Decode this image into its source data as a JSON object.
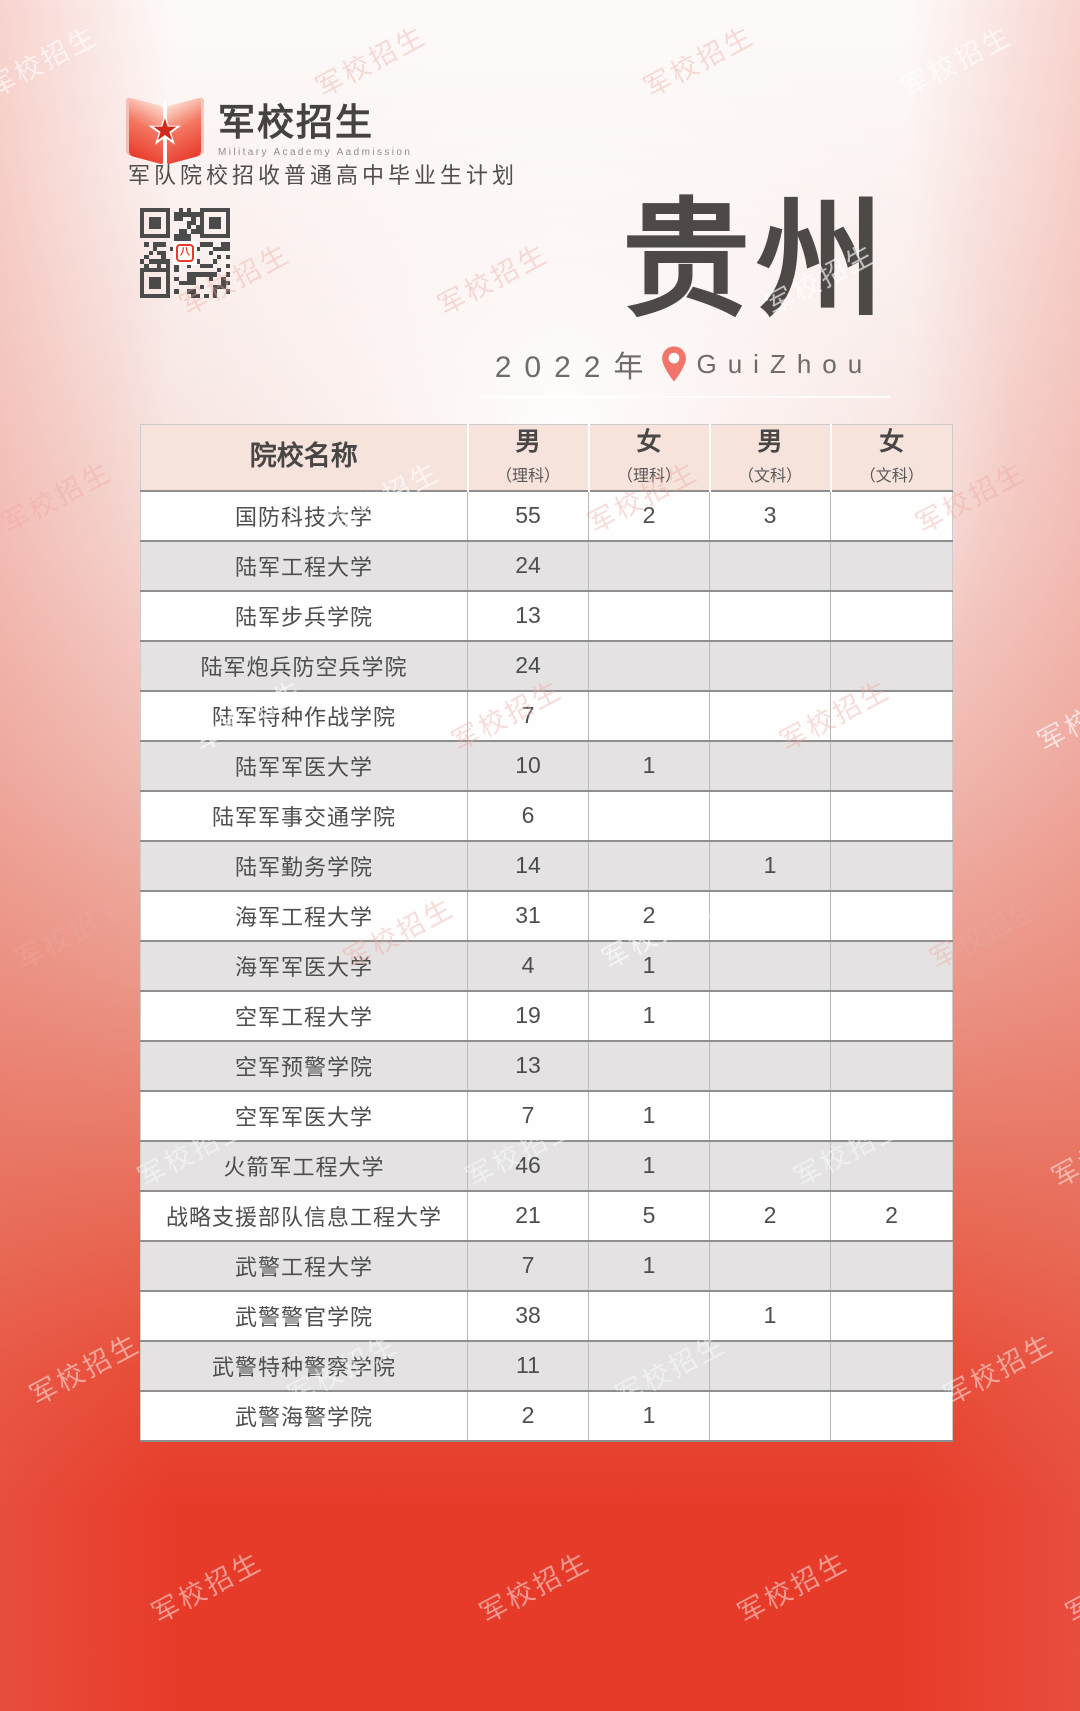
{
  "brand": {
    "logo_title": "军校招生",
    "logo_subtitle": "Military Academy Aadmission",
    "tagline": "军队院校招收普通高中毕业生计划"
  },
  "hero": {
    "title": "贵州",
    "year": "2022年",
    "pinyin": "GuiZhou"
  },
  "watermark": {
    "text": "军校招生"
  },
  "colors": {
    "poster_red": "#e73b2a",
    "table_header_bg": "#f6e3dc",
    "row_alt_bg": "#e4e2e2",
    "pin_red": "#f2756b",
    "text_dark": "#4c4a49"
  },
  "table": {
    "columns": [
      {
        "title": "院校名称",
        "subtitle": ""
      },
      {
        "title": "男",
        "subtitle": "（理科）"
      },
      {
        "title": "女",
        "subtitle": "（理科）"
      },
      {
        "title": "男",
        "subtitle": "（文科）"
      },
      {
        "title": "女",
        "subtitle": "（文科）"
      }
    ],
    "rows": [
      {
        "name": "国防科技大学",
        "values": [
          "55",
          "2",
          "3",
          ""
        ]
      },
      {
        "name": "陆军工程大学",
        "values": [
          "24",
          "",
          "",
          ""
        ]
      },
      {
        "name": "陆军步兵学院",
        "values": [
          "13",
          "",
          "",
          ""
        ]
      },
      {
        "name": "陆军炮兵防空兵学院",
        "values": [
          "24",
          "",
          "",
          ""
        ]
      },
      {
        "name": "陆军特种作战学院",
        "values": [
          "7",
          "",
          "",
          ""
        ]
      },
      {
        "name": "陆军军医大学",
        "values": [
          "10",
          "1",
          "",
          ""
        ]
      },
      {
        "name": "陆军军事交通学院",
        "values": [
          "6",
          "",
          "",
          ""
        ]
      },
      {
        "name": "陆军勤务学院",
        "values": [
          "14",
          "",
          "1",
          ""
        ]
      },
      {
        "name": "海军工程大学",
        "values": [
          "31",
          "2",
          "",
          ""
        ]
      },
      {
        "name": "海军军医大学",
        "values": [
          "4",
          "1",
          "",
          ""
        ]
      },
      {
        "name": "空军工程大学",
        "values": [
          "19",
          "1",
          "",
          ""
        ]
      },
      {
        "name": "空军预警学院",
        "values": [
          "13",
          "",
          "",
          ""
        ]
      },
      {
        "name": "空军军医大学",
        "values": [
          "7",
          "1",
          "",
          ""
        ]
      },
      {
        "name": "火箭军工程大学",
        "values": [
          "46",
          "1",
          "",
          ""
        ]
      },
      {
        "name": "战略支援部队信息工程大学",
        "values": [
          "21",
          "5",
          "2",
          "2"
        ]
      },
      {
        "name": "武警工程大学",
        "values": [
          "7",
          "1",
          "",
          ""
        ]
      },
      {
        "name": "武警警官学院",
        "values": [
          "38",
          "",
          "1",
          ""
        ]
      },
      {
        "name": "武警特种警察学院",
        "values": [
          "11",
          "",
          "",
          ""
        ]
      },
      {
        "name": "武警海警学院",
        "values": [
          "2",
          "1",
          "",
          ""
        ]
      }
    ]
  }
}
